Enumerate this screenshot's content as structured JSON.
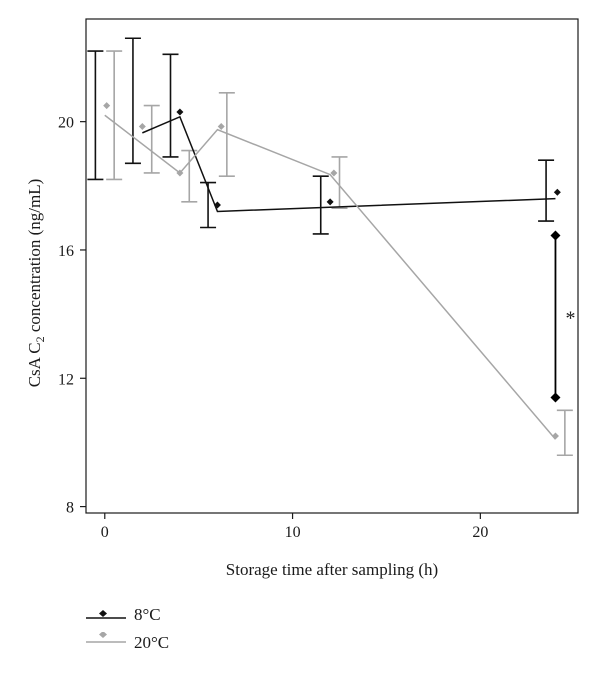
{
  "chart_data": {
    "type": "line",
    "xlabel": "Storage time after sampling (h)",
    "ylabel_main": "CsA C",
    "ylabel_sub": "2",
    "ylabel_rest": " concentration (ng/mL)",
    "xlim": [
      -1,
      25.2
    ],
    "ylim": [
      7.8,
      23.2
    ],
    "xticks": [
      0,
      10,
      20
    ],
    "yticks": [
      8,
      12,
      16,
      20
    ],
    "grid": false,
    "legend_position": "bottom-left",
    "annotation": "*",
    "series": [
      {
        "name": "8°C",
        "color": "#111111",
        "marker": "diamond",
        "line_x": [
          2,
          4,
          6,
          24
        ],
        "line_y": [
          19.65,
          20.15,
          17.2,
          17.6
        ],
        "points": [
          {
            "x": 4,
            "y": 20.3
          },
          {
            "x": 6,
            "y": 17.4
          },
          {
            "x": 12,
            "y": 17.5
          },
          {
            "x": 24.1,
            "y": 17.8
          }
        ],
        "errorbars": [
          {
            "x": -0.5,
            "low": 18.2,
            "high": 22.2
          },
          {
            "x": 1.5,
            "low": 18.7,
            "high": 22.6
          },
          {
            "x": 3.5,
            "low": 18.9,
            "high": 22.1
          },
          {
            "x": 5.5,
            "low": 16.7,
            "high": 18.1
          },
          {
            "x": 11.5,
            "low": 16.5,
            "high": 18.3
          },
          {
            "x": 23.5,
            "low": 16.9,
            "high": 18.8
          }
        ]
      },
      {
        "name": "20°C",
        "color": "#a6a6a6",
        "marker": "diamond",
        "line_x": [
          0,
          4,
          6,
          12,
          24
        ],
        "line_y": [
          20.2,
          18.4,
          19.75,
          18.35,
          10.1
        ],
        "points": [
          {
            "x": 0.1,
            "y": 20.5
          },
          {
            "x": 2,
            "y": 19.85
          },
          {
            "x": 4,
            "y": 18.4
          },
          {
            "x": 6.2,
            "y": 19.85
          },
          {
            "x": 12.2,
            "y": 18.4
          },
          {
            "x": 24,
            "y": 10.2
          }
        ],
        "errorbars": [
          {
            "x": 0.5,
            "low": 18.2,
            "high": 22.2
          },
          {
            "x": 2.5,
            "low": 18.4,
            "high": 20.5
          },
          {
            "x": 4.5,
            "low": 17.5,
            "high": 19.1
          },
          {
            "x": 6.5,
            "low": 18.3,
            "high": 20.9
          },
          {
            "x": 12.5,
            "low": 17.3,
            "high": 18.9
          },
          {
            "x": 24.5,
            "low": 9.6,
            "high": 11.0
          }
        ]
      }
    ],
    "significance": {
      "x": 24,
      "y_top": 16.45,
      "y_bottom": 11.4
    }
  }
}
